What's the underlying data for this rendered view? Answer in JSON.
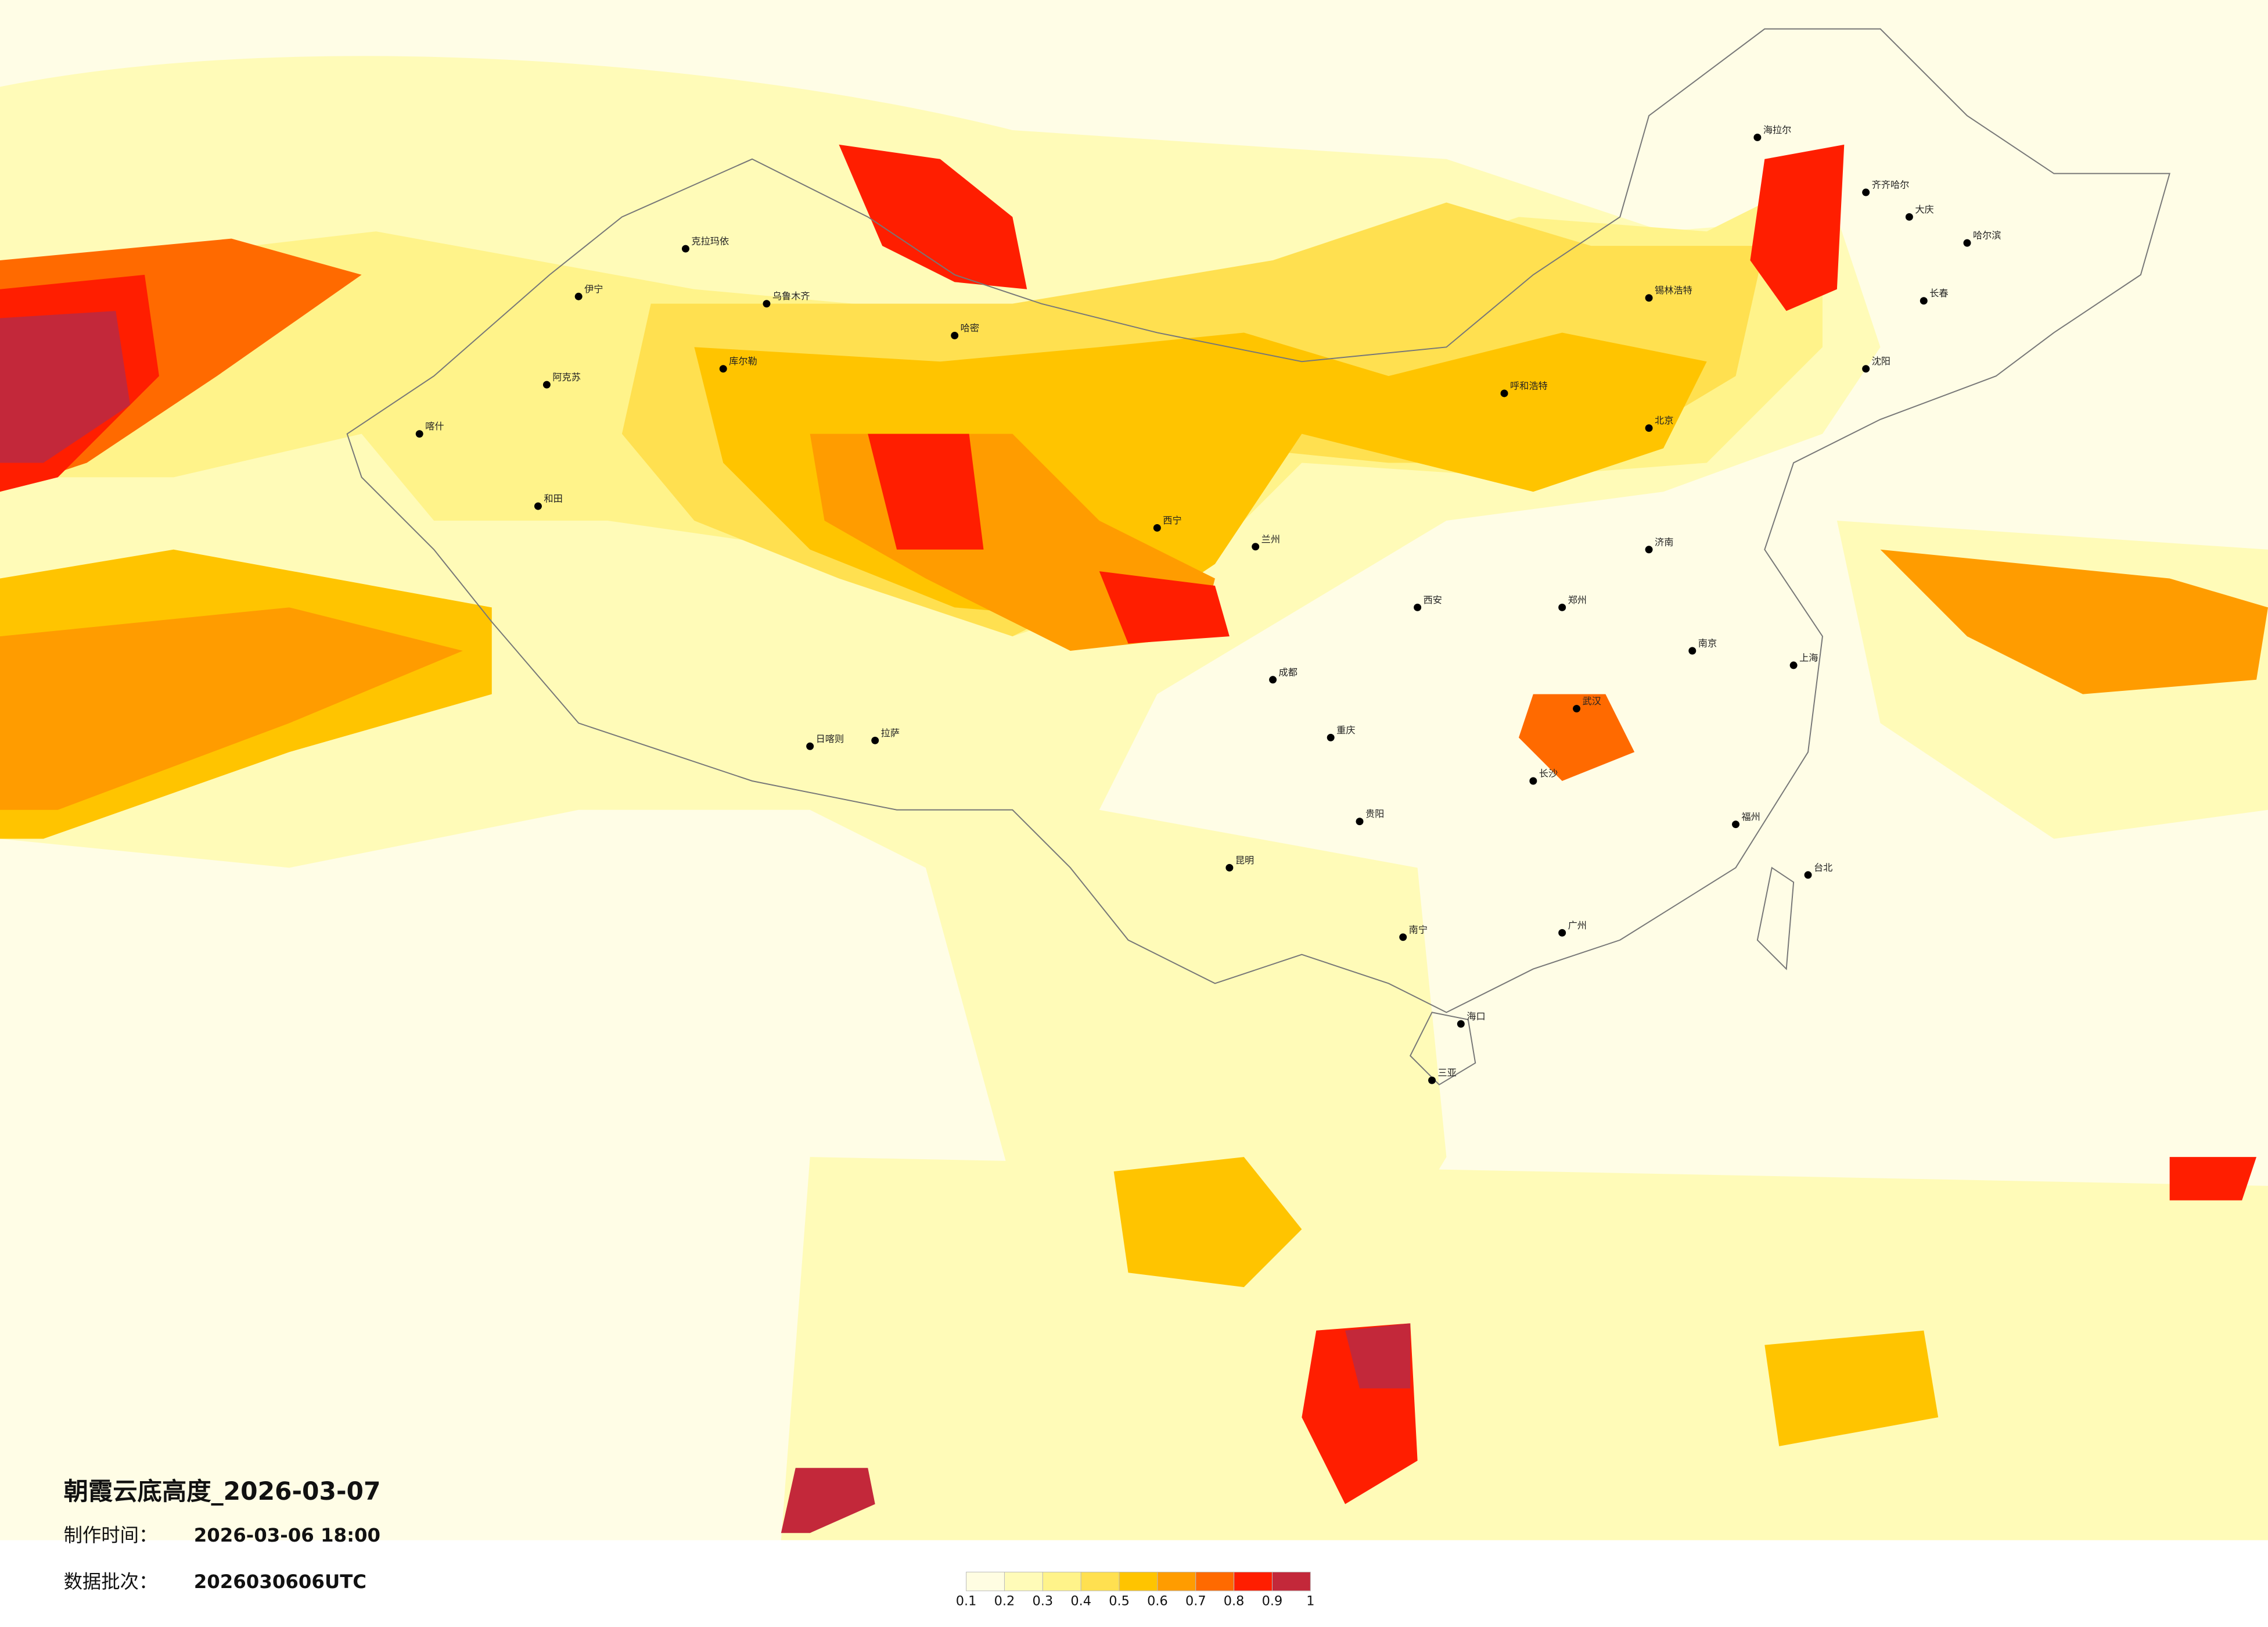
{
  "title": "朝霞云底高度_2026-03-07",
  "info": [
    {
      "label": "制作时间：",
      "value": "2026-03-06 18:00"
    },
    {
      "label": "数据批次：",
      "value": "2026030606UTC"
    }
  ],
  "legend": {
    "ticks": [
      0.1,
      0.2,
      0.3,
      0.4,
      0.5,
      0.6,
      0.7,
      0.8,
      0.9,
      1
    ],
    "colors": [
      "#fffde2",
      "#fffbb8",
      "#fff38a",
      "#ffe050",
      "#ffc400",
      "#ff9c00",
      "#ff6a00",
      "#ff1e00",
      "#c3283a"
    ]
  },
  "cities": [
    "克拉玛依",
    "乌鲁木齐",
    "哈密",
    "库尔勒",
    "阿克苏",
    "喀什",
    "和田",
    "伊宁",
    "拉萨",
    "日喀则",
    "西宁",
    "兰州",
    "呼和浩特",
    "锡林浩特",
    "北京",
    "海拉尔",
    "齐齐哈尔",
    "大庆",
    "哈尔滨",
    "长春",
    "沈阳",
    "成都",
    "昆明",
    "贵阳",
    "南宁",
    "广州",
    "福州",
    "台北",
    "海口",
    "三亚",
    "武汉",
    "长沙",
    "南京",
    "上海",
    "济南",
    "郑州",
    "西安",
    "重庆"
  ]
}
